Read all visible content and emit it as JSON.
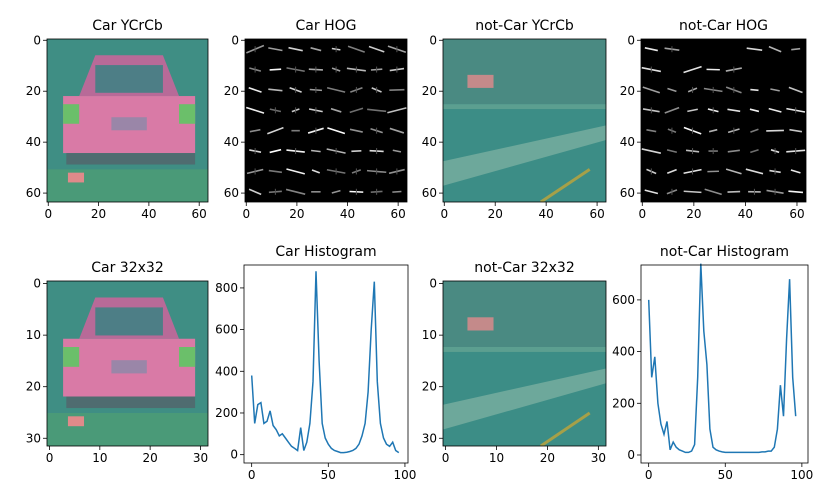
{
  "chart_data": [
    {
      "type": "image",
      "title": "Car YCrCb",
      "xlim": [
        -0.5,
        63.5
      ],
      "ylim": [
        63.5,
        -0.5
      ],
      "xticks": [
        0,
        20,
        40,
        60
      ],
      "yticks": [
        0,
        20,
        40,
        60
      ]
    },
    {
      "type": "image",
      "title": "Car HOG",
      "xlim": [
        -0.5,
        63.5
      ],
      "ylim": [
        63.5,
        -0.5
      ],
      "xticks": [
        0,
        20,
        40,
        60
      ],
      "yticks": [
        0,
        20,
        40,
        60
      ]
    },
    {
      "type": "image",
      "title": "not-Car YCrCb",
      "xlim": [
        -0.5,
        63.5
      ],
      "ylim": [
        63.5,
        -0.5
      ],
      "xticks": [
        0,
        20,
        40,
        60
      ],
      "yticks": [
        0,
        20,
        40,
        60
      ]
    },
    {
      "type": "image",
      "title": "not-Car HOG",
      "xlim": [
        -0.5,
        63.5
      ],
      "ylim": [
        63.5,
        -0.5
      ],
      "xticks": [
        0,
        20,
        40,
        60
      ],
      "yticks": [
        0,
        20,
        40,
        60
      ]
    },
    {
      "type": "image",
      "title": "Car 32x32",
      "xlim": [
        -0.5,
        31.5
      ],
      "ylim": [
        31.5,
        -0.5
      ],
      "xticks": [
        0,
        10,
        20,
        30
      ],
      "yticks": [
        0,
        10,
        20,
        30
      ]
    },
    {
      "type": "line",
      "title": "Car Histogram",
      "xlim": [
        -5,
        102
      ],
      "ylim": [
        -40,
        910
      ],
      "xticks": [
        0,
        50,
        100
      ],
      "yticks": [
        0,
        200,
        400,
        600,
        800
      ],
      "color": "#1f77b4",
      "x": [
        0,
        2,
        4,
        6,
        8,
        10,
        12,
        14,
        16,
        18,
        20,
        22,
        24,
        26,
        28,
        30,
        32,
        34,
        36,
        38,
        40,
        42,
        44,
        46,
        48,
        50,
        52,
        54,
        56,
        58,
        60,
        62,
        64,
        66,
        68,
        70,
        72,
        74,
        76,
        78,
        80,
        82,
        84,
        86,
        88,
        90,
        92,
        94,
        96
      ],
      "values": [
        380,
        150,
        240,
        250,
        150,
        160,
        210,
        140,
        120,
        90,
        100,
        80,
        60,
        40,
        30,
        20,
        130,
        20,
        60,
        150,
        350,
        880,
        450,
        150,
        80,
        50,
        30,
        20,
        15,
        10,
        10,
        12,
        15,
        20,
        30,
        50,
        90,
        150,
        300,
        600,
        830,
        350,
        150,
        80,
        50,
        40,
        60,
        20,
        10
      ]
    },
    {
      "type": "image",
      "title": "not-Car 32x32",
      "xlim": [
        -0.5,
        31.5
      ],
      "ylim": [
        31.5,
        -0.5
      ],
      "xticks": [
        0,
        10,
        20,
        30
      ],
      "yticks": [
        0,
        10,
        20,
        30
      ]
    },
    {
      "type": "line",
      "title": "not-Car Histogram",
      "xlim": [
        -5,
        104
      ],
      "ylim": [
        -31,
        735
      ],
      "xticks": [
        0,
        50,
        100
      ],
      "yticks": [
        0,
        200,
        400,
        600
      ],
      "color": "#1f77b4",
      "x": [
        0,
        2,
        4,
        6,
        8,
        10,
        12,
        14,
        16,
        18,
        20,
        22,
        24,
        26,
        28,
        30,
        32,
        34,
        36,
        38,
        40,
        42,
        44,
        46,
        48,
        50,
        52,
        54,
        56,
        58,
        60,
        62,
        64,
        66,
        68,
        70,
        72,
        74,
        76,
        78,
        80,
        82,
        84,
        86,
        88,
        90,
        92,
        94,
        96
      ],
      "values": [
        600,
        300,
        380,
        200,
        120,
        80,
        130,
        20,
        50,
        30,
        20,
        15,
        10,
        10,
        15,
        40,
        300,
        740,
        480,
        350,
        100,
        30,
        20,
        15,
        12,
        10,
        10,
        10,
        10,
        10,
        10,
        10,
        10,
        10,
        10,
        10,
        10,
        12,
        12,
        15,
        15,
        30,
        100,
        270,
        150,
        450,
        680,
        300,
        150
      ]
    }
  ]
}
